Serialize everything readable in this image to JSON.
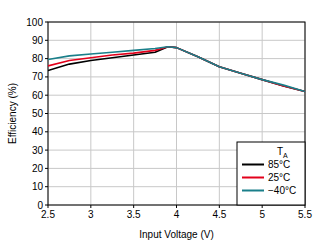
{
  "chart_data": {
    "type": "line",
    "x_label": "Input Voltage (V)",
    "y_label": "Efficiency (%)",
    "x": [
      2.5,
      2.75,
      3,
      3.25,
      3.5,
      3.75,
      3.9,
      4,
      4.25,
      4.5,
      4.75,
      5,
      5.25,
      5.5
    ],
    "series": [
      {
        "name": "85°C",
        "color": "#000000",
        "values": [
          73.5,
          77,
          79,
          80.5,
          82,
          83.5,
          86.5,
          86,
          81,
          75.5,
          72,
          68.5,
          65,
          62
        ]
      },
      {
        "name": "25°C",
        "color": "#e3001b",
        "values": [
          76,
          79,
          80.5,
          82,
          83,
          84.5,
          86.5,
          86,
          81,
          75.5,
          72,
          68.5,
          65,
          62
        ]
      },
      {
        "name": "−40°C",
        "color": "#1a7f8a",
        "values": [
          79.5,
          81.5,
          82.5,
          83.5,
          84.5,
          85.5,
          86.5,
          86,
          81,
          75.5,
          72,
          68.5,
          65.5,
          62
        ]
      }
    ],
    "xlim": [
      2.5,
      5.5
    ],
    "xticks": [
      2.5,
      3,
      3.5,
      4,
      4.5,
      5,
      5.5
    ],
    "ylim": [
      0,
      100
    ],
    "yticks": [
      0,
      10,
      20,
      30,
      40,
      50,
      60,
      70,
      80,
      90,
      100
    ],
    "grid": true,
    "legend": "lower right",
    "legend_title": {
      "text": "T",
      "subscript": "A"
    }
  }
}
